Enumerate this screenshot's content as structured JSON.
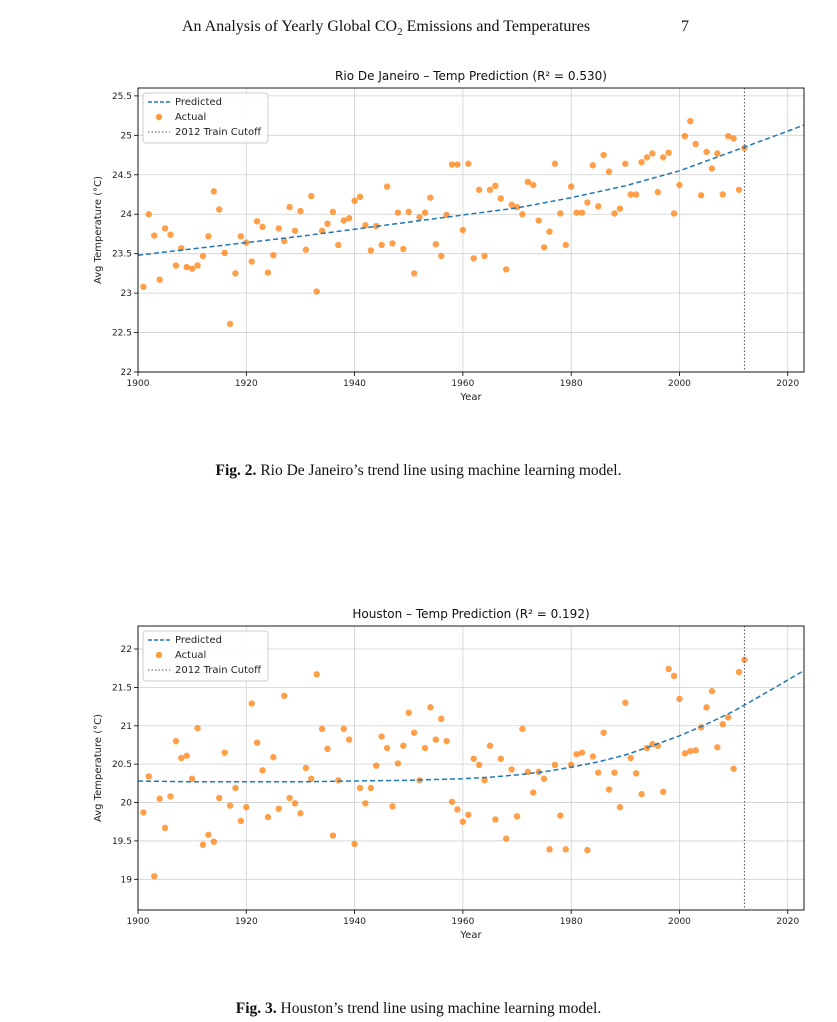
{
  "header": {
    "title_before": "An Analysis of Yearly Global CO",
    "title_sub": "2",
    "title_after": " Emissions and Temperatures",
    "page_number": "7"
  },
  "figures": [
    {
      "caption_label": "Fig. 2.",
      "caption_text": " Rio De Janeiro’s trend line using machine learning model."
    },
    {
      "caption_label": "Fig. 3.",
      "caption_text": " Houston’s trend line using machine learning model."
    }
  ],
  "colors": {
    "predicted": "#1f77b4",
    "actual": "#ff7f0e",
    "cutoff": "#555555",
    "grid": "#d0d0d0"
  },
  "chart_data": [
    {
      "type": "scatter",
      "title": "Rio De Janeiro – Temp Prediction (R² = 0.530)",
      "xlabel": "Year",
      "ylabel": "Avg Temperature (°C)",
      "xlim": [
        1900,
        2023
      ],
      "ylim": [
        22.0,
        25.6
      ],
      "xticks": [
        1900,
        1920,
        1940,
        1960,
        1980,
        2000,
        2020
      ],
      "yticks": [
        22.0,
        22.5,
        23.0,
        23.5,
        24.0,
        24.5,
        25.0,
        25.5
      ],
      "grid": true,
      "legend_position": "top-left",
      "legend": [
        "Predicted",
        "Actual",
        "2012 Train Cutoff"
      ],
      "cutoff_year": 2012,
      "predicted": {
        "name": "Predicted",
        "x": [
          1900,
          1910,
          1920,
          1930,
          1940,
          1950,
          1960,
          1970,
          1980,
          1990,
          2000,
          2010,
          2023
        ],
        "y": [
          23.48,
          23.56,
          23.64,
          23.72,
          23.81,
          23.9,
          23.99,
          24.08,
          24.21,
          24.36,
          24.55,
          24.8,
          25.13
        ]
      },
      "actual": {
        "name": "Actual",
        "x": [
          1901,
          1902,
          1903,
          1904,
          1905,
          1906,
          1907,
          1908,
          1909,
          1910,
          1911,
          1912,
          1913,
          1914,
          1915,
          1916,
          1917,
          1918,
          1919,
          1920,
          1921,
          1922,
          1923,
          1924,
          1925,
          1926,
          1927,
          1928,
          1929,
          1930,
          1931,
          1932,
          1933,
          1934,
          1935,
          1936,
          1937,
          1938,
          1939,
          1940,
          1941,
          1942,
          1943,
          1944,
          1945,
          1946,
          1947,
          1948,
          1949,
          1950,
          1951,
          1952,
          1953,
          1954,
          1955,
          1956,
          1957,
          1958,
          1959,
          1960,
          1961,
          1962,
          1963,
          1964,
          1965,
          1966,
          1967,
          1968,
          1969,
          1970,
          1971,
          1972,
          1973,
          1974,
          1975,
          1976,
          1977,
          1978,
          1979,
          1980,
          1981,
          1982,
          1983,
          1984,
          1985,
          1986,
          1987,
          1988,
          1989,
          1990,
          1991,
          1992,
          1993,
          1994,
          1995,
          1996,
          1997,
          1998,
          1999,
          2000,
          2001,
          2002,
          2003,
          2004,
          2005,
          2006,
          2007,
          2008,
          2009,
          2010,
          2011,
          2012
        ],
        "y": [
          23.08,
          24.0,
          23.73,
          23.17,
          23.82,
          23.74,
          23.35,
          23.57,
          23.33,
          23.31,
          23.35,
          23.47,
          23.72,
          24.29,
          24.06,
          23.51,
          22.61,
          23.25,
          23.72,
          23.64,
          23.4,
          23.91,
          23.84,
          23.26,
          23.48,
          23.82,
          23.66,
          24.09,
          23.79,
          24.04,
          23.55,
          24.23,
          23.02,
          23.79,
          23.88,
          24.03,
          23.61,
          23.92,
          23.95,
          24.17,
          24.22,
          23.86,
          23.54,
          23.85,
          23.61,
          24.35,
          23.63,
          24.02,
          23.56,
          24.03,
          23.25,
          23.96,
          24.02,
          24.21,
          23.62,
          23.47,
          23.99,
          24.63,
          24.63,
          23.8,
          24.64,
          23.44,
          24.31,
          23.47,
          24.31,
          24.36,
          24.2,
          23.3,
          24.12,
          24.09,
          24.0,
          24.41,
          24.37,
          23.92,
          23.58,
          23.78,
          24.64,
          24.01,
          23.61,
          24.35,
          24.02,
          24.02,
          24.15,
          24.62,
          24.1,
          24.75,
          24.54,
          24.01,
          24.07,
          24.64,
          24.25,
          24.25,
          24.66,
          24.72,
          24.77,
          24.28,
          24.72,
          24.78,
          24.01,
          24.37,
          24.99,
          25.18,
          24.89,
          24.24,
          24.79,
          24.58,
          24.77,
          24.25,
          24.99,
          24.96,
          24.31,
          24.84
        ]
      }
    },
    {
      "type": "scatter",
      "title": "Houston – Temp Prediction (R² = 0.192)",
      "xlabel": "Year",
      "ylabel": "Avg Temperature (°C)",
      "xlim": [
        1900,
        2023
      ],
      "ylim": [
        18.6,
        22.3
      ],
      "xticks": [
        1900,
        1920,
        1940,
        1960,
        1980,
        2000,
        2020
      ],
      "yticks": [
        19.0,
        19.5,
        20.0,
        20.5,
        21.0,
        21.5,
        22.0
      ],
      "grid": true,
      "legend_position": "top-left",
      "legend": [
        "Predicted",
        "Actual",
        "2012 Train Cutoff"
      ],
      "cutoff_year": 2012,
      "predicted": {
        "name": "Predicted",
        "x": [
          1900,
          1910,
          1920,
          1930,
          1940,
          1950,
          1960,
          1965,
          1970,
          1975,
          1980,
          1985,
          1990,
          1995,
          2000,
          2005,
          2010,
          2015,
          2023
        ],
        "y": [
          20.28,
          20.27,
          20.27,
          20.27,
          20.28,
          20.29,
          20.31,
          20.33,
          20.36,
          20.4,
          20.46,
          20.53,
          20.62,
          20.74,
          20.87,
          21.02,
          21.19,
          21.39,
          21.72
        ]
      },
      "actual": {
        "name": "Actual",
        "x": [
          1901,
          1902,
          1903,
          1904,
          1905,
          1906,
          1907,
          1908,
          1909,
          1910,
          1911,
          1912,
          1913,
          1914,
          1915,
          1916,
          1917,
          1918,
          1919,
          1920,
          1921,
          1922,
          1923,
          1924,
          1925,
          1926,
          1927,
          1928,
          1929,
          1930,
          1931,
          1932,
          1933,
          1934,
          1935,
          1936,
          1937,
          1938,
          1939,
          1940,
          1941,
          1942,
          1943,
          1944,
          1945,
          1946,
          1947,
          1948,
          1949,
          1950,
          1951,
          1952,
          1953,
          1954,
          1955,
          1956,
          1957,
          1958,
          1959,
          1960,
          1961,
          1962,
          1963,
          1964,
          1965,
          1966,
          1967,
          1968,
          1969,
          1970,
          1971,
          1972,
          1973,
          1974,
          1975,
          1976,
          1977,
          1978,
          1979,
          1980,
          1981,
          1982,
          1983,
          1984,
          1985,
          1986,
          1987,
          1988,
          1989,
          1990,
          1991,
          1992,
          1993,
          1994,
          1995,
          1996,
          1997,
          1998,
          1999,
          2000,
          2001,
          2002,
          2003,
          2004,
          2005,
          2006,
          2007,
          2008,
          2009,
          2010,
          2011,
          2012
        ],
        "y": [
          19.87,
          20.34,
          19.04,
          20.05,
          19.67,
          20.08,
          20.8,
          20.58,
          20.61,
          20.31,
          20.97,
          19.45,
          19.58,
          19.49,
          20.06,
          20.65,
          19.96,
          20.19,
          19.76,
          19.94,
          21.29,
          20.78,
          20.42,
          19.81,
          20.59,
          19.92,
          21.39,
          20.06,
          19.99,
          19.86,
          20.45,
          20.31,
          21.67,
          20.96,
          20.7,
          19.57,
          20.29,
          20.96,
          20.82,
          19.46,
          20.19,
          19.99,
          20.19,
          20.48,
          20.86,
          20.71,
          19.95,
          20.51,
          20.74,
          21.17,
          20.91,
          20.29,
          20.71,
          21.24,
          20.82,
          21.09,
          20.8,
          20.01,
          19.91,
          19.75,
          19.84,
          20.57,
          20.49,
          20.29,
          20.74,
          19.78,
          20.57,
          19.53,
          20.43,
          19.82,
          20.96,
          20.4,
          20.13,
          20.4,
          20.31,
          19.39,
          20.49,
          19.83,
          19.39,
          20.49,
          20.63,
          20.65,
          19.38,
          20.6,
          20.39,
          20.91,
          20.17,
          20.39,
          19.94,
          21.3,
          20.58,
          20.38,
          20.11,
          20.71,
          20.76,
          20.74,
          20.14,
          21.74,
          21.65,
          21.35,
          20.64,
          20.67,
          20.68,
          20.98,
          21.24,
          21.45,
          20.72,
          21.02,
          21.11,
          20.44,
          21.7,
          21.86
        ]
      }
    }
  ]
}
